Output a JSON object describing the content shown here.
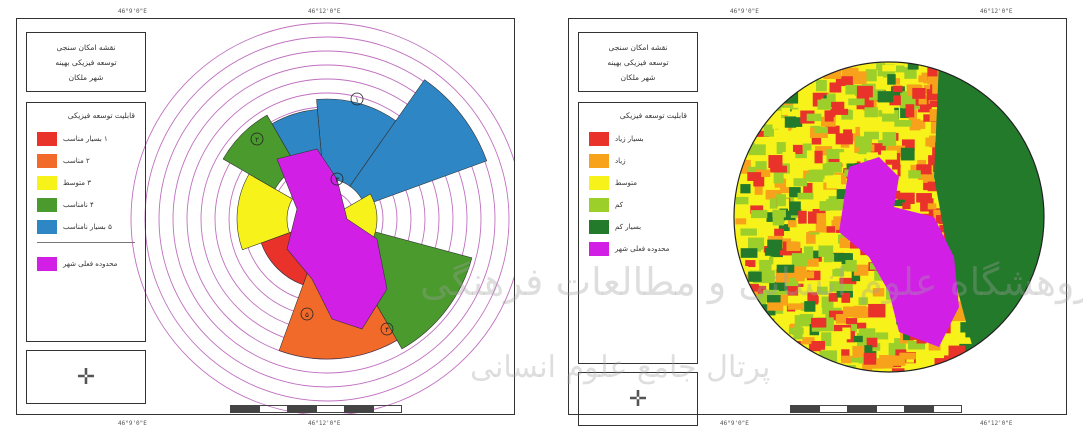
{
  "left_map": {
    "title": "نقشه امکان سنجی\nتوسعه فیزیکی بهینه\nشهر ملکان",
    "legend_title": "قابلیت توسعه فیزیکی",
    "legend_items": [
      {
        "label": "۱ بسیار مناسب",
        "color": "#e8322a"
      },
      {
        "label": "۲ مناسب",
        "color": "#f26a2a"
      },
      {
        "label": "۳ متوسط",
        "color": "#f7f21a"
      },
      {
        "label": "۴ نامناسب",
        "color": "#4a9a2e"
      },
      {
        "label": "۵ بسیار نامناسب",
        "color": "#2f86c4"
      }
    ],
    "boundary_label": "محدوده فعلی شهر",
    "boundary_color": "#d21fe6",
    "zone_numbers": [
      "۱",
      "۲",
      "۳",
      "۴",
      "۵"
    ],
    "rings": 14
  },
  "right_map": {
    "title": "نقشه امکان سنجی\nتوسعه فیزیکی بهینه\nشهر ملکان",
    "legend_title": "قابلیت توسعه فیزیکی",
    "legend_items": [
      {
        "label": "بسیار زیاد",
        "color": "#e8322a"
      },
      {
        "label": "زیاد",
        "color": "#f7a21a"
      },
      {
        "label": "متوسط",
        "color": "#f7f21a"
      },
      {
        "label": "کم",
        "color": "#9ccf2a"
      },
      {
        "label": "بسیار کم",
        "color": "#237a2a"
      },
      {
        "label": "محدوده فعلی شهر",
        "color": "#d21fe6"
      }
    ]
  },
  "watermark": "پرتال جامع علوم انسانی",
  "watermark2": "پژوهشگاه علوم انسانی و مطالعات فرهنگی"
}
